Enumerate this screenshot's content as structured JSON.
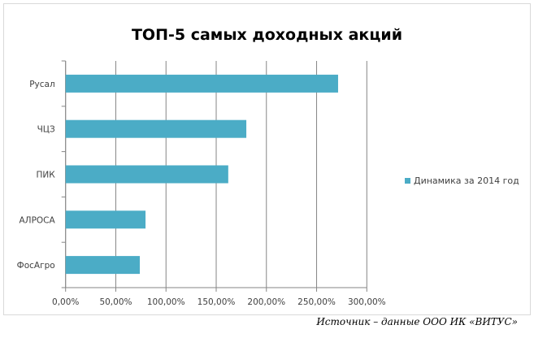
{
  "chart_data": {
    "type": "bar",
    "orientation": "horizontal",
    "title": "ТОП-5 самых доходных акций",
    "categories": [
      "Русал",
      "ЧЦЗ",
      "ПИК",
      "АЛРОСА",
      "ФосАгро"
    ],
    "series": [
      {
        "name": "Динамика за 2014 год",
        "values": [
          271.4,
          180.0,
          162.0,
          79.6,
          73.9
        ],
        "color": "#4bacc6"
      }
    ],
    "xlabel": "",
    "ylabel": "",
    "xlim": [
      0,
      300
    ],
    "xticks": [
      "0,00%",
      "50,00%",
      "100,00%",
      "150,00%",
      "200,00%",
      "250,00%",
      "300,00%"
    ],
    "grid": true,
    "legend_position": "right"
  },
  "source": "Источник – данные ООО ИК «ВИТУС»"
}
